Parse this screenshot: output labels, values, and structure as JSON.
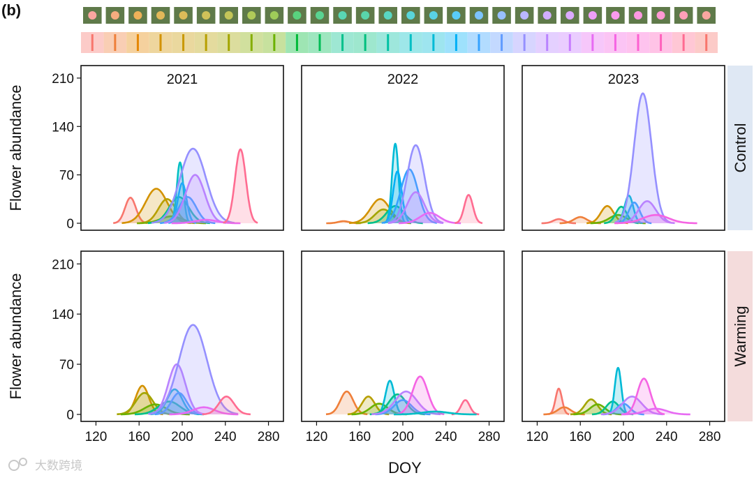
{
  "figure_label": "(b)",
  "watermark_text": "大数跨境",
  "chart_data": {
    "type": "area",
    "title": "",
    "xlabel": "DOY",
    "ylabel": "Flower abundance",
    "xlim": [
      110,
      290
    ],
    "ylim": [
      0,
      220
    ],
    "xticks": [
      120,
      160,
      200,
      240,
      280
    ],
    "yticks": [
      0,
      70,
      140,
      210
    ],
    "rows": [
      "Control",
      "Warming"
    ],
    "row_strip_colors": [
      "#dfe8f4",
      "#f4dcdc"
    ],
    "years": [
      "2021",
      "2022",
      "2023"
    ],
    "species_colors": [
      "#f8766d",
      "#ef7f3a",
      "#e58700",
      "#d39200",
      "#c99800",
      "#b79f00",
      "#a3a500",
      "#85ad00",
      "#6bb100",
      "#00ba38",
      "#00bc56",
      "#00c08b",
      "#00bf7d",
      "#00c1a3",
      "#00bfc4",
      "#00bad6",
      "#00b0f6",
      "#35a2ff",
      "#619cff",
      "#9590ff",
      "#b983ff",
      "#c77cff",
      "#e76bf3",
      "#f564e3",
      "#fd61d1",
      "#ff62bc",
      "#ff6c91",
      "#f8766d"
    ],
    "panels": [
      {
        "row": "Control",
        "year": "2021",
        "series": [
          {
            "color": "#f8766d",
            "peak_doy": 152,
            "peak": 37,
            "width": 5
          },
          {
            "color": "#d39200",
            "peak_doy": 176,
            "peak": 50,
            "width": 10
          },
          {
            "color": "#b79f00",
            "peak_doy": 186,
            "peak": 35,
            "width": 8
          },
          {
            "color": "#7cae00",
            "peak_doy": 190,
            "peak": 10,
            "width": 10
          },
          {
            "color": "#00c08b",
            "peak_doy": 197,
            "peak": 38,
            "width": 9
          },
          {
            "color": "#00bfc4",
            "peak_doy": 198,
            "peak": 88,
            "width": 3
          },
          {
            "color": "#00b0f6",
            "peak_doy": 200,
            "peak": 58,
            "width": 4
          },
          {
            "color": "#35a2ff",
            "peak_doy": 205,
            "peak": 38,
            "width": 8
          },
          {
            "color": "#9590ff",
            "peak_doy": 210,
            "peak": 108,
            "width": 12
          },
          {
            "color": "#b983ff",
            "peak_doy": 212,
            "peak": 70,
            "width": 9
          },
          {
            "color": "#e76bf3",
            "peak_doy": 222,
            "peak": 5,
            "width": 10
          },
          {
            "color": "#ff6c91",
            "peak_doy": 254,
            "peak": 107,
            "width": 5
          }
        ]
      },
      {
        "row": "Control",
        "year": "2022",
        "series": [
          {
            "color": "#ef7f3a",
            "peak_doy": 145,
            "peak": 3,
            "width": 5
          },
          {
            "color": "#d39200",
            "peak_doy": 179,
            "peak": 35,
            "width": 9
          },
          {
            "color": "#a3a500",
            "peak_doy": 182,
            "peak": 20,
            "width": 8
          },
          {
            "color": "#00c08b",
            "peak_doy": 193,
            "peak": 25,
            "width": 8
          },
          {
            "color": "#00bad6",
            "peak_doy": 193,
            "peak": 115,
            "width": 3
          },
          {
            "color": "#00b0f6",
            "peak_doy": 195,
            "peak": 75,
            "width": 4
          },
          {
            "color": "#35a2ff",
            "peak_doy": 206,
            "peak": 78,
            "width": 8
          },
          {
            "color": "#9590ff",
            "peak_doy": 212,
            "peak": 113,
            "width": 8
          },
          {
            "color": "#b983ff",
            "peak_doy": 212,
            "peak": 45,
            "width": 8
          },
          {
            "color": "#e76bf3",
            "peak_doy": 225,
            "peak": 15,
            "width": 9
          },
          {
            "color": "#ff6c91",
            "peak_doy": 261,
            "peak": 41,
            "width": 4
          }
        ]
      },
      {
        "row": "Control",
        "year": "2023",
        "series": [
          {
            "color": "#f8766d",
            "peak_doy": 140,
            "peak": 6,
            "width": 5
          },
          {
            "color": "#ef7f3a",
            "peak_doy": 160,
            "peak": 9,
            "width": 6
          },
          {
            "color": "#d39200",
            "peak_doy": 185,
            "peak": 25,
            "width": 6
          },
          {
            "color": "#6bb100",
            "peak_doy": 195,
            "peak": 12,
            "width": 8
          },
          {
            "color": "#00c08b",
            "peak_doy": 198,
            "peak": 24,
            "width": 5
          },
          {
            "color": "#00bad6",
            "peak_doy": 205,
            "peak": 40,
            "width": 4
          },
          {
            "color": "#35a2ff",
            "peak_doy": 210,
            "peak": 30,
            "width": 5
          },
          {
            "color": "#9590ff",
            "peak_doy": 218,
            "peak": 188,
            "width": 8
          },
          {
            "color": "#b983ff",
            "peak_doy": 222,
            "peak": 32,
            "width": 8
          },
          {
            "color": "#f564e3",
            "peak_doy": 230,
            "peak": 12,
            "width": 12
          }
        ]
      },
      {
        "row": "Warming",
        "year": "2021",
        "series": [
          {
            "color": "#d39200",
            "peak_doy": 163,
            "peak": 40,
            "width": 6
          },
          {
            "color": "#a3a500",
            "peak_doy": 165,
            "peak": 30,
            "width": 8
          },
          {
            "color": "#6bb100",
            "peak_doy": 175,
            "peak": 14,
            "width": 10
          },
          {
            "color": "#00c08b",
            "peak_doy": 188,
            "peak": 18,
            "width": 10
          },
          {
            "color": "#00bad6",
            "peak_doy": 193,
            "peak": 35,
            "width": 7
          },
          {
            "color": "#35a2ff",
            "peak_doy": 197,
            "peak": 30,
            "width": 7
          },
          {
            "color": "#b983ff",
            "peak_doy": 195,
            "peak": 70,
            "width": 8
          },
          {
            "color": "#9590ff",
            "peak_doy": 210,
            "peak": 125,
            "width": 13
          },
          {
            "color": "#e76bf3",
            "peak_doy": 220,
            "peak": 10,
            "width": 10
          },
          {
            "color": "#ff6c91",
            "peak_doy": 241,
            "peak": 25,
            "width": 7
          }
        ]
      },
      {
        "row": "Warming",
        "year": "2022",
        "series": [
          {
            "color": "#ef7f3a",
            "peak_doy": 148,
            "peak": 32,
            "width": 6
          },
          {
            "color": "#b79f00",
            "peak_doy": 168,
            "peak": 25,
            "width": 6
          },
          {
            "color": "#6bb100",
            "peak_doy": 178,
            "peak": 15,
            "width": 8
          },
          {
            "color": "#00bad6",
            "peak_doy": 188,
            "peak": 47,
            "width": 4
          },
          {
            "color": "#00c08b",
            "peak_doy": 195,
            "peak": 28,
            "width": 8
          },
          {
            "color": "#35a2ff",
            "peak_doy": 200,
            "peak": 20,
            "width": 8
          },
          {
            "color": "#b983ff",
            "peak_doy": 203,
            "peak": 32,
            "width": 10
          },
          {
            "color": "#f564e3",
            "peak_doy": 216,
            "peak": 53,
            "width": 7
          },
          {
            "color": "#ff6c91",
            "peak_doy": 258,
            "peak": 20,
            "width": 4
          },
          {
            "color": "#00bfc4",
            "peak_doy": 230,
            "peak": 4,
            "width": 12
          }
        ]
      },
      {
        "row": "Warming",
        "year": "2023",
        "series": [
          {
            "color": "#f8766d",
            "peak_doy": 140,
            "peak": 36,
            "width": 3
          },
          {
            "color": "#ef7f3a",
            "peak_doy": 145,
            "peak": 10,
            "width": 6
          },
          {
            "color": "#a3a500",
            "peak_doy": 170,
            "peak": 21,
            "width": 6
          },
          {
            "color": "#6bb100",
            "peak_doy": 176,
            "peak": 14,
            "width": 7
          },
          {
            "color": "#00c08b",
            "peak_doy": 190,
            "peak": 18,
            "width": 6
          },
          {
            "color": "#00bad6",
            "peak_doy": 195,
            "peak": 65,
            "width": 3
          },
          {
            "color": "#35a2ff",
            "peak_doy": 200,
            "peak": 15,
            "width": 6
          },
          {
            "color": "#b983ff",
            "peak_doy": 208,
            "peak": 25,
            "width": 9
          },
          {
            "color": "#f564e3",
            "peak_doy": 219,
            "peak": 50,
            "width": 6
          },
          {
            "color": "#e76bf3",
            "peak_doy": 230,
            "peak": 8,
            "width": 10
          }
        ]
      }
    ]
  }
}
